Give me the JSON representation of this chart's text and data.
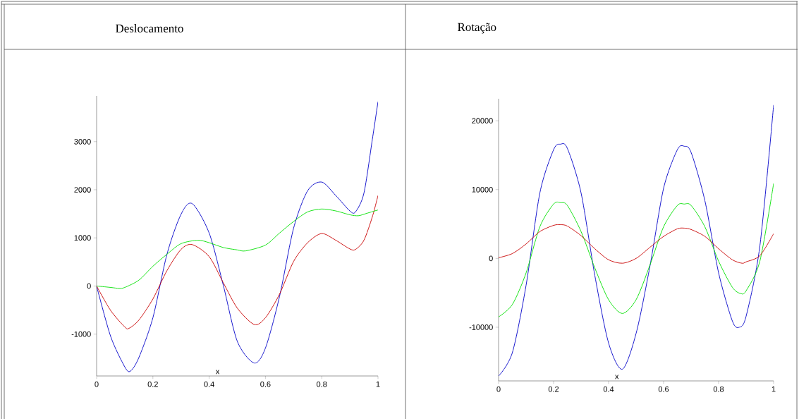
{
  "chart_data": [
    {
      "type": "line",
      "title": "Deslocamento",
      "xlabel": "x",
      "xlim": [
        0,
        1
      ],
      "ylim": [
        -1870,
        3950
      ],
      "xticks": [
        0,
        0.2,
        0.4,
        0.6,
        0.8,
        1
      ],
      "yticks": [
        -1000,
        0,
        1000,
        2000,
        3000
      ],
      "grid": false,
      "line_style": "solid",
      "marker": "none",
      "series": [
        {
          "color": "#0000c8",
          "x": [
            0,
            0.05,
            0.1,
            0.12,
            0.15,
            0.2,
            0.25,
            0.3,
            0.34,
            0.4,
            0.45,
            0.5,
            0.56,
            0.6,
            0.65,
            0.7,
            0.75,
            0.8,
            0.85,
            0.9,
            0.92,
            0.95,
            0.98,
            1
          ],
          "values": [
            0,
            -1050,
            -1680,
            -1770,
            -1490,
            -660,
            660,
            1490,
            1710,
            1100,
            20,
            -1150,
            -1600,
            -1290,
            -220,
            1200,
            1980,
            2160,
            1880,
            1560,
            1540,
            1930,
            3050,
            3830
          ]
        },
        {
          "color": "#c80000",
          "x": [
            0,
            0.05,
            0.1,
            0.115,
            0.15,
            0.2,
            0.25,
            0.3,
            0.34,
            0.4,
            0.45,
            0.5,
            0.56,
            0.6,
            0.65,
            0.7,
            0.75,
            0.8,
            0.85,
            0.9,
            0.92,
            0.95,
            0.98,
            1
          ],
          "values": [
            0,
            -510,
            -850,
            -880,
            -710,
            -270,
            320,
            760,
            860,
            610,
            70,
            -460,
            -800,
            -660,
            -170,
            510,
            900,
            1090,
            950,
            770,
            760,
            950,
            1440,
            1880
          ]
        },
        {
          "color": "#00e000",
          "x": [
            0,
            0.05,
            0.08,
            0.1,
            0.15,
            0.2,
            0.25,
            0.3,
            0.36,
            0.4,
            0.45,
            0.5,
            0.53,
            0.6,
            0.65,
            0.7,
            0.75,
            0.8,
            0.85,
            0.9,
            0.93,
            0.96,
            1
          ],
          "values": [
            0,
            -30,
            -50,
            -30,
            120,
            410,
            660,
            880,
            950,
            900,
            800,
            750,
            730,
            850,
            1100,
            1340,
            1540,
            1600,
            1560,
            1480,
            1460,
            1510,
            1580
          ]
        }
      ]
    },
    {
      "type": "line",
      "title": "Rotação",
      "xlabel": "x",
      "xlim": [
        0,
        1
      ],
      "ylim": [
        -17800,
        23200
      ],
      "xticks": [
        0,
        0.2,
        0.4,
        0.6,
        0.8,
        1
      ],
      "yticks": [
        -10000,
        0,
        10000,
        20000
      ],
      "grid": false,
      "line_style": "solid",
      "marker": "none",
      "series": [
        {
          "color": "#0000c8",
          "x": [
            0,
            0.05,
            0.1,
            0.15,
            0.2,
            0.225,
            0.25,
            0.3,
            0.35,
            0.4,
            0.45,
            0.5,
            0.55,
            0.6,
            0.65,
            0.675,
            0.7,
            0.75,
            0.8,
            0.85,
            0.875,
            0.9,
            0.95,
            1
          ],
          "values": [
            -17100,
            -13700,
            -3900,
            9500,
            15800,
            16600,
            16000,
            9500,
            -2500,
            -12300,
            -16100,
            -10900,
            -1200,
            10200,
            15800,
            16300,
            15400,
            8400,
            -2100,
            -9100,
            -10000,
            -8400,
            1800,
            22300
          ]
        },
        {
          "color": "#00e000",
          "x": [
            0,
            0.05,
            0.1,
            0.15,
            0.2,
            0.225,
            0.25,
            0.3,
            0.35,
            0.4,
            0.45,
            0.5,
            0.55,
            0.6,
            0.65,
            0.675,
            0.7,
            0.75,
            0.8,
            0.85,
            0.88,
            0.9,
            0.95,
            1
          ],
          "values": [
            -8500,
            -6700,
            -2100,
            4600,
            7900,
            8100,
            7700,
            3900,
            -1400,
            -6000,
            -8000,
            -6000,
            -1000,
            4600,
            7700,
            7900,
            7700,
            4600,
            -400,
            -4200,
            -5100,
            -4700,
            -400,
            10900
          ]
        },
        {
          "color": "#c80000",
          "x": [
            0,
            0.05,
            0.1,
            0.15,
            0.2,
            0.225,
            0.25,
            0.3,
            0.35,
            0.4,
            0.45,
            0.5,
            0.55,
            0.6,
            0.65,
            0.675,
            0.7,
            0.75,
            0.8,
            0.85,
            0.885,
            0.9,
            0.95,
            1
          ],
          "values": [
            100,
            700,
            2100,
            3900,
            4800,
            4900,
            4700,
            3300,
            1400,
            -200,
            -700,
            0,
            1600,
            3200,
            4300,
            4400,
            4200,
            3200,
            1400,
            -200,
            -700,
            -500,
            400,
            3600
          ]
        }
      ]
    }
  ]
}
